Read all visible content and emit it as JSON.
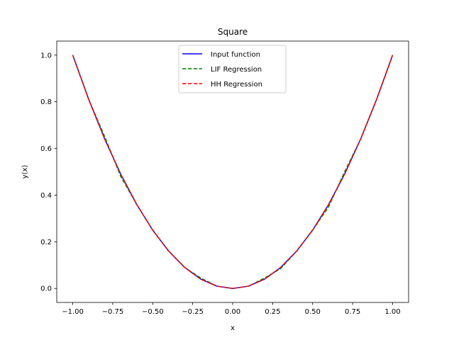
{
  "chart_data": {
    "type": "line",
    "title": "Square",
    "xlabel": "x",
    "ylabel": "y(x)",
    "xlim": [
      -1.1,
      1.1
    ],
    "ylim": [
      -0.06,
      1.06
    ],
    "xticks": [
      -1.0,
      -0.75,
      -0.5,
      -0.25,
      0.0,
      0.25,
      0.5,
      0.75,
      1.0
    ],
    "xtick_labels": [
      "−1.00",
      "−0.75",
      "−0.50",
      "−0.25",
      "0.00",
      "0.25",
      "0.50",
      "0.75",
      "1.00"
    ],
    "yticks": [
      0.0,
      0.2,
      0.4,
      0.6,
      0.8,
      1.0
    ],
    "ytick_labels": [
      "0.0",
      "0.2",
      "0.4",
      "0.6",
      "0.8",
      "1.0"
    ],
    "grid": false,
    "legend_position": "top-center",
    "x": [
      -1.0,
      -0.9,
      -0.8,
      -0.7,
      -0.6,
      -0.5,
      -0.4,
      -0.3,
      -0.2,
      -0.1,
      0.0,
      0.1,
      0.2,
      0.3,
      0.4,
      0.5,
      0.6,
      0.7,
      0.8,
      0.9,
      1.0
    ],
    "series": [
      {
        "name": "Input function",
        "color": "#0000ff",
        "style": "solid",
        "values": [
          1.0,
          0.81,
          0.64,
          0.49,
          0.36,
          0.25,
          0.16,
          0.09,
          0.04,
          0.01,
          0.0,
          0.01,
          0.04,
          0.09,
          0.16,
          0.25,
          0.36,
          0.49,
          0.64,
          0.81,
          1.0
        ]
      },
      {
        "name": "LIF Regression",
        "color": "#008000",
        "style": "dashed",
        "values": [
          1.0,
          0.81,
          0.65,
          0.48,
          0.36,
          0.25,
          0.16,
          0.09,
          0.045,
          0.01,
          0.0,
          0.01,
          0.045,
          0.085,
          0.16,
          0.25,
          0.35,
          0.5,
          0.64,
          0.81,
          1.0
        ]
      },
      {
        "name": "HH Regression",
        "color": "#ff0000",
        "style": "dashed",
        "values": [
          1.0,
          0.81,
          0.64,
          0.49,
          0.36,
          0.25,
          0.16,
          0.09,
          0.04,
          0.01,
          0.0,
          0.01,
          0.04,
          0.09,
          0.16,
          0.25,
          0.36,
          0.49,
          0.64,
          0.81,
          1.0
        ]
      }
    ]
  }
}
